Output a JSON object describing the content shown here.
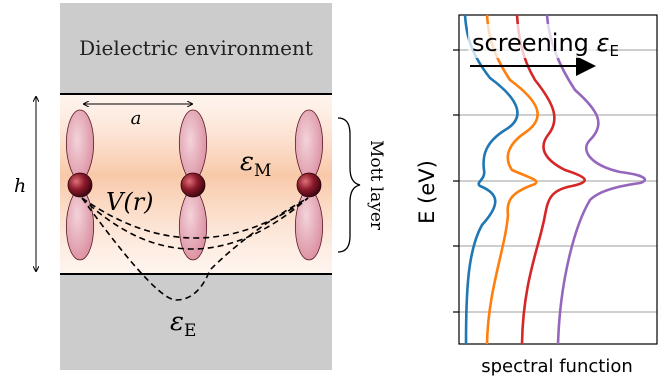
{
  "left_panel": {
    "top_label": "Dielectric environment",
    "lattice_label": "a",
    "height_label": "h",
    "interaction_label": "V(r)",
    "mott_eps_symbol": "ε",
    "mott_eps_sub": "M",
    "env_eps_symbol": "ε",
    "env_eps_sub": "E",
    "mott_layer_label": "Mott layer"
  },
  "right_panel": {
    "arrow_text": "screening ",
    "arrow_eps": "ε",
    "arrow_eps_sub": "E",
    "y_label": "E (eV)",
    "x_label": "spectral function",
    "series_colors": [
      "#1f77b4",
      "#ff7f0e",
      "#d62728",
      "#9467bd"
    ]
  }
}
